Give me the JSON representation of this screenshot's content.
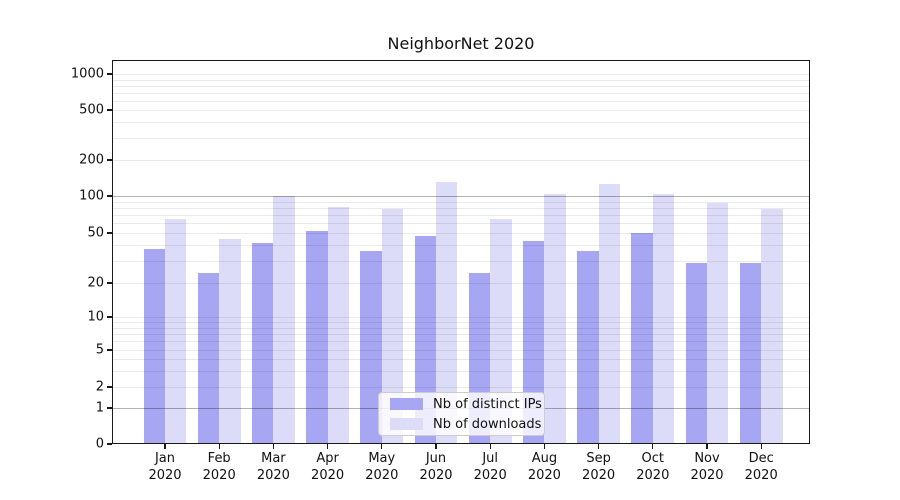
{
  "figure": {
    "background": "#ffffff"
  },
  "chart_data": {
    "type": "bar",
    "title": "NeighborNet 2020",
    "categories": [
      "Jan",
      "Feb",
      "Mar",
      "Apr",
      "May",
      "Jun",
      "Jul",
      "Aug",
      "Sep",
      "Oct",
      "Nov",
      "Dec"
    ],
    "x_year_suffix": "2020",
    "series": [
      {
        "name": "Nb of distinct IPs",
        "color": "#a6a6f2",
        "values": [
          37,
          24,
          42,
          52,
          36,
          47,
          24,
          43,
          36,
          50,
          29,
          29
        ]
      },
      {
        "name": "Nb of downloads",
        "color": "#dcdcf9",
        "values": [
          65,
          45,
          100,
          82,
          78,
          130,
          65,
          105,
          125,
          105,
          88,
          78
        ]
      }
    ],
    "y_axis": {
      "scale": "symlog",
      "tick_values": [
        0,
        1,
        2,
        5,
        10,
        20,
        50,
        100,
        200,
        500,
        1000
      ],
      "emphasized_gridlines": [
        1,
        100
      ],
      "minor_gridlines": [
        3,
        4,
        6,
        7,
        8,
        9,
        30,
        40,
        60,
        70,
        80,
        90,
        300,
        400,
        600,
        700,
        800,
        900
      ],
      "range": [
        0,
        1000
      ]
    },
    "legend": {
      "position": "lower center"
    },
    "grid": true,
    "colors": {
      "axis": "#1a1a1a",
      "grid_minor": "#e9e9e9",
      "grid_emphasized": "#b3b3b3",
      "background": "#ffffff"
    }
  }
}
